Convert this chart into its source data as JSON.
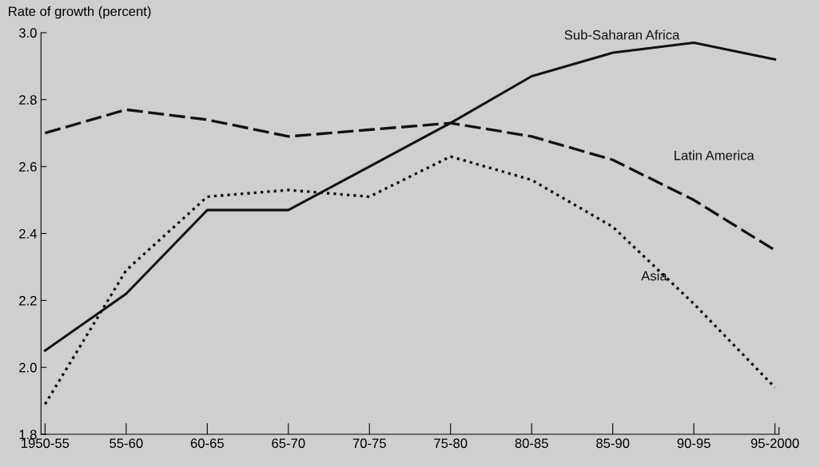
{
  "chart_data": {
    "type": "line",
    "ylabel": "Rate of growth (percent)",
    "categories": [
      "1950-55",
      "55-60",
      "60-65",
      "65-70",
      "70-75",
      "75-80",
      "80-85",
      "85-90",
      "90-95",
      "95-2000"
    ],
    "series": [
      {
        "name": "Sub-Saharan Africa",
        "color": "#111111",
        "line_style": "solid",
        "values": [
          2.05,
          2.22,
          2.47,
          2.47,
          2.6,
          2.73,
          2.87,
          2.94,
          2.97,
          2.92
        ]
      },
      {
        "name": "Latin America",
        "color": "#111111",
        "line_style": "dashed",
        "values": [
          2.7,
          2.77,
          2.74,
          2.69,
          2.71,
          2.73,
          2.69,
          2.62,
          2.5,
          2.35
        ]
      },
      {
        "name": "Asia",
        "color": "#111111",
        "line_style": "dotted",
        "values": [
          1.89,
          2.29,
          2.51,
          2.53,
          2.51,
          2.63,
          2.56,
          2.42,
          2.19,
          1.94
        ]
      }
    ],
    "ylim": [
      1.8,
      3.0
    ],
    "yticks": [
      {
        "value": 1.8,
        "label": "1.8"
      },
      {
        "value": 2.0,
        "label": "2.0"
      },
      {
        "value": 2.2,
        "label": "2.2"
      },
      {
        "value": 2.4,
        "label": "2.4"
      },
      {
        "value": 2.6,
        "label": "2.6"
      },
      {
        "value": 2.8,
        "label": "2.8"
      },
      {
        "value": 3.0,
        "label": "3.0"
      }
    ],
    "grid": false,
    "legend": false,
    "marker": "none"
  }
}
